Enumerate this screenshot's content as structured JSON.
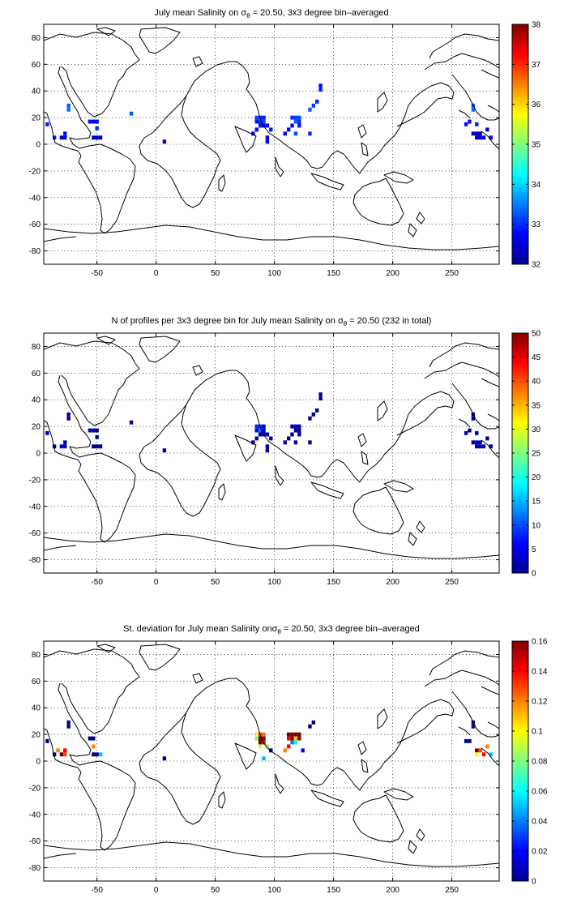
{
  "chart_data": [
    {
      "type": "heatmap",
      "title": {
        "before": "July mean Salinity on ",
        "sigma": "σ",
        "sigma_sub": "θ",
        "after": " = 20.50, 3x3 degree bin–averaged"
      },
      "xlim": [
        -95,
        290
      ],
      "ylim": [
        -90,
        90
      ],
      "xticks": [
        -50,
        0,
        50,
        100,
        150,
        200,
        250
      ],
      "yticks": [
        -80,
        -60,
        -40,
        -20,
        0,
        20,
        40,
        60,
        80
      ],
      "grid": true,
      "colorbar": {
        "min": 32,
        "max": 38,
        "ticks": [
          32,
          33,
          34,
          35,
          36,
          37,
          38
        ]
      },
      "cells": [
        [
          -92,
          15,
          32.9
        ],
        [
          -86,
          5,
          32.9
        ],
        [
          -80,
          5,
          32.4
        ],
        [
          -77,
          5,
          32.5
        ],
        [
          -77,
          8,
          32.7
        ],
        [
          -74,
          26,
          33.4
        ],
        [
          -74,
          29,
          33.3
        ],
        [
          -56,
          17,
          32.8
        ],
        [
          -53,
          17,
          32.7
        ],
        [
          -50,
          17,
          32.8
        ],
        [
          -53,
          5,
          32.5
        ],
        [
          -50,
          5,
          32.4
        ],
        [
          -47,
          5,
          32.4
        ],
        [
          -50,
          12,
          33.0
        ],
        [
          -21,
          23,
          33.3
        ],
        [
          7,
          2,
          32.3
        ],
        [
          85,
          17,
          32.8
        ],
        [
          85,
          20,
          33.2
        ],
        [
          88,
          20,
          33.1
        ],
        [
          88,
          17,
          33.0
        ],
        [
          91,
          17,
          33.2
        ],
        [
          91,
          20,
          32.9
        ],
        [
          88,
          14,
          32.9
        ],
        [
          91,
          14,
          32.7
        ],
        [
          94,
          14,
          32.8
        ],
        [
          82,
          8,
          32.6
        ],
        [
          85,
          11,
          32.8
        ],
        [
          97,
          11,
          32.9
        ],
        [
          94,
          5,
          32.6
        ],
        [
          94,
          2,
          32.6
        ],
        [
          115,
          20,
          33.0
        ],
        [
          118,
          20,
          33.1
        ],
        [
          121,
          20,
          33.2
        ],
        [
          118,
          17,
          33.3
        ],
        [
          121,
          17,
          33.0
        ],
        [
          121,
          14,
          32.9
        ],
        [
          115,
          14,
          32.8
        ],
        [
          112,
          11,
          32.8
        ],
        [
          109,
          8,
          32.7
        ],
        [
          118,
          8,
          33.2
        ],
        [
          130,
          8,
          33.0
        ],
        [
          133,
          29,
          33.1
        ],
        [
          130,
          26,
          33.3
        ],
        [
          136,
          32,
          33.0
        ],
        [
          139,
          44,
          32.8
        ],
        [
          139,
          41,
          32.9
        ],
        [
          268,
          26,
          33.4
        ],
        [
          268,
          29,
          33.3
        ],
        [
          265,
          17,
          32.8
        ],
        [
          262,
          15,
          32.8
        ],
        [
          271,
          15,
          32.9
        ],
        [
          268,
          8,
          32.5
        ],
        [
          271,
          8,
          32.4
        ],
        [
          274,
          8,
          32.3
        ],
        [
          271,
          5,
          32.4
        ],
        [
          274,
          5,
          32.4
        ],
        [
          277,
          5,
          32.5
        ],
        [
          283,
          5,
          32.6
        ],
        [
          280,
          11,
          32.5
        ]
      ]
    },
    {
      "type": "heatmap",
      "title": {
        "before": "N of profiles per 3x3 degree bin for July mean Salinity on ",
        "sigma": "σ",
        "sigma_sub": "θ",
        "after": " = 20.50 (232 in total)"
      },
      "xlim": [
        -95,
        290
      ],
      "ylim": [
        -90,
        90
      ],
      "xticks": [
        -50,
        0,
        50,
        100,
        150,
        200,
        250
      ],
      "yticks": [
        -80,
        -60,
        -40,
        -20,
        0,
        20,
        40,
        60,
        80
      ],
      "grid": true,
      "colorbar": {
        "min": 0,
        "max": 50,
        "ticks": [
          0,
          5,
          10,
          15,
          20,
          25,
          30,
          35,
          40,
          45,
          50
        ]
      },
      "cells": [
        [
          -92,
          15,
          3
        ],
        [
          -86,
          5,
          1
        ],
        [
          -80,
          5,
          3
        ],
        [
          -77,
          5,
          2
        ],
        [
          -77,
          8,
          2
        ],
        [
          -74,
          26,
          1
        ],
        [
          -74,
          29,
          1
        ],
        [
          -56,
          17,
          2
        ],
        [
          -53,
          17,
          2
        ],
        [
          -50,
          17,
          1
        ],
        [
          -53,
          5,
          1
        ],
        [
          -50,
          5,
          1
        ],
        [
          -47,
          5,
          1
        ],
        [
          -50,
          12,
          1
        ],
        [
          -21,
          23,
          1
        ],
        [
          7,
          2,
          1
        ],
        [
          85,
          17,
          6
        ],
        [
          85,
          20,
          8
        ],
        [
          88,
          20,
          9
        ],
        [
          88,
          17,
          12
        ],
        [
          91,
          17,
          6
        ],
        [
          91,
          20,
          4
        ],
        [
          88,
          14,
          2
        ],
        [
          91,
          14,
          3
        ],
        [
          94,
          14,
          2
        ],
        [
          82,
          8,
          1
        ],
        [
          85,
          11,
          1
        ],
        [
          97,
          11,
          1
        ],
        [
          94,
          5,
          1
        ],
        [
          94,
          2,
          1
        ],
        [
          115,
          20,
          3
        ],
        [
          118,
          20,
          3
        ],
        [
          121,
          20,
          2
        ],
        [
          118,
          17,
          2
        ],
        [
          121,
          17,
          1
        ],
        [
          121,
          14,
          1
        ],
        [
          115,
          14,
          1
        ],
        [
          112,
          11,
          1
        ],
        [
          109,
          8,
          1
        ],
        [
          118,
          8,
          1
        ],
        [
          130,
          8,
          1
        ],
        [
          133,
          29,
          1
        ],
        [
          130,
          26,
          1
        ],
        [
          136,
          32,
          1
        ],
        [
          139,
          44,
          1
        ],
        [
          139,
          41,
          1
        ],
        [
          268,
          26,
          1
        ],
        [
          268,
          29,
          1
        ],
        [
          265,
          17,
          1
        ],
        [
          262,
          15,
          2
        ],
        [
          271,
          15,
          1
        ],
        [
          268,
          8,
          2
        ],
        [
          271,
          8,
          4
        ],
        [
          274,
          8,
          3
        ],
        [
          271,
          5,
          3
        ],
        [
          274,
          5,
          2
        ],
        [
          277,
          5,
          1
        ],
        [
          283,
          5,
          1
        ],
        [
          280,
          11,
          1
        ]
      ]
    },
    {
      "type": "heatmap",
      "title": {
        "before": "St. deviation for July mean Salinity on",
        "sigma": "σ",
        "sigma_sub": "θ",
        "after": " = 20.50, 3x3 degree bin–averaged"
      },
      "xlim": [
        -95,
        290
      ],
      "ylim": [
        -90,
        90
      ],
      "xticks": [
        -50,
        0,
        50,
        100,
        150,
        200,
        250
      ],
      "yticks": [
        -80,
        -60,
        -40,
        -20,
        0,
        20,
        40,
        60,
        80
      ],
      "grid": true,
      "colorbar": {
        "min": 0,
        "max": 0.16,
        "ticks": [
          0,
          0.02,
          0.04,
          0.06,
          0.08,
          0.1,
          0.12,
          0.14,
          0.16
        ]
      },
      "cells": [
        [
          -92,
          15,
          0.0
        ],
        [
          -86,
          5,
          0.0
        ],
        [
          -80,
          5,
          0.16
        ],
        [
          -77,
          5,
          0.13
        ],
        [
          -77,
          8,
          0.14
        ],
        [
          -83,
          8,
          0.12
        ],
        [
          -74,
          26,
          0.0
        ],
        [
          -74,
          29,
          0.0
        ],
        [
          -56,
          17,
          0.0
        ],
        [
          -53,
          17,
          0.0
        ],
        [
          -53,
          5,
          0.0
        ],
        [
          -50,
          5,
          0.0
        ],
        [
          -47,
          5,
          0.05
        ],
        [
          -53,
          11,
          0.12
        ],
        [
          7,
          2,
          0.0
        ],
        [
          85,
          17,
          0.08
        ],
        [
          85,
          20,
          0.1
        ],
        [
          88,
          20,
          0.13
        ],
        [
          88,
          17,
          0.16
        ],
        [
          91,
          17,
          0.16
        ],
        [
          91,
          20,
          0.12
        ],
        [
          88,
          14,
          0.16
        ],
        [
          91,
          14,
          0.14
        ],
        [
          88,
          11,
          0.09
        ],
        [
          94,
          11,
          0.08
        ],
        [
          91,
          2,
          0.05
        ],
        [
          97,
          8,
          0.0
        ],
        [
          112,
          20,
          0.16
        ],
        [
          115,
          20,
          0.16
        ],
        [
          118,
          20,
          0.16
        ],
        [
          121,
          20,
          0.16
        ],
        [
          112,
          17,
          0.14
        ],
        [
          115,
          17,
          0.16
        ],
        [
          118,
          17,
          0.11
        ],
        [
          121,
          17,
          0.16
        ],
        [
          118,
          14,
          0.06
        ],
        [
          115,
          14,
          0.04
        ],
        [
          112,
          11,
          0.14
        ],
        [
          109,
          8,
          0.12
        ],
        [
          124,
          8,
          0.02
        ],
        [
          133,
          29,
          0.0
        ],
        [
          130,
          26,
          0.0
        ],
        [
          268,
          26,
          0.0
        ],
        [
          268,
          29,
          0.0
        ],
        [
          262,
          15,
          0.0
        ],
        [
          265,
          15,
          0.0
        ],
        [
          271,
          8,
          0.16
        ],
        [
          274,
          8,
          0.13
        ],
        [
          277,
          5,
          0.14
        ],
        [
          271,
          5,
          0.1
        ],
        [
          283,
          5,
          0.05
        ],
        [
          280,
          11,
          0.12
        ]
      ]
    }
  ]
}
